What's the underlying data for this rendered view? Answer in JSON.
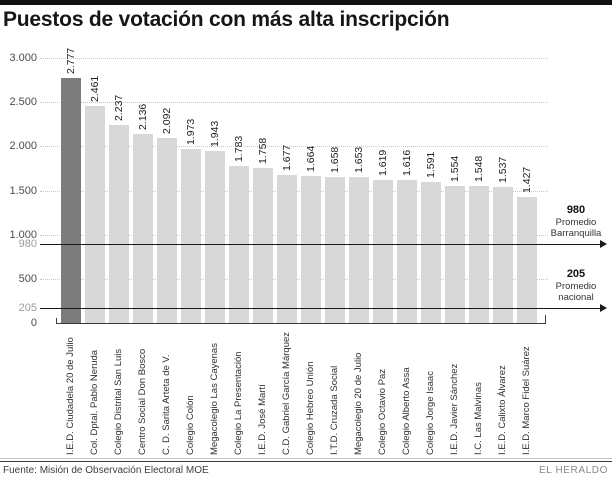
{
  "title": "Puestos de votación con más alta inscripción",
  "footer": {
    "source": "Fuente: Misión de Observación Electoral MOE",
    "credit": "EL HERALDO"
  },
  "colors": {
    "highlight_bar": "#7c7c7c",
    "bar": "#d8d8d8",
    "grid": "#c7c7c7",
    "reference_line": "#1a1a1a",
    "axis_label": "#4d4d4d",
    "reference_axis_label": "#9c9c9c"
  },
  "chart_data": {
    "type": "bar",
    "title": "Puestos de votación con más alta inscripción",
    "categories": [
      "I.E.D. Ciudadela 20 de Julio",
      "Col. Dptal. Pablo Neruda",
      "Colegio Distrital San Luis",
      "Centro Social Don Bosco",
      "C. D. Sarita Arteta de V.",
      "Colegio Colón",
      "Megacolegio Las Cayenas",
      "Colegio La Presentación",
      "I.E.D. José Martí",
      "C.D. Gabriel García Márquez",
      "Colegio Hebreo Unión",
      "I.T.D. Cruzada Social",
      "Megacolegio 20 de Julio",
      "Colegio Octavio Paz",
      "Colegio Alberto Assa",
      "Colegio Jorge Isaac",
      "I.E.D. Javier Sánchez",
      "I.C. Las Malvinas",
      "I.E.D. Calixto Álvarez",
      "I.E.D. Marco Fidel Suárez"
    ],
    "values": [
      2777,
      2461,
      2237,
      2136,
      2092,
      1973,
      1943,
      1783,
      1758,
      1677,
      1664,
      1658,
      1653,
      1619,
      1616,
      1591,
      1554,
      1548,
      1537,
      1427
    ],
    "value_labels": [
      "2.777",
      "2.461",
      "2.237",
      "2.136",
      "2.092",
      "1.973",
      "1.943",
      "1.783",
      "1.758",
      "1.677",
      "1.664",
      "1.658",
      "1.653",
      "1.619",
      "1.616",
      "1.591",
      "1.554",
      "1.548",
      "1.537",
      "1.427"
    ],
    "highlight_index": 0,
    "ylim": [
      0,
      3000
    ],
    "yticks": [
      0,
      500,
      1000,
      1500,
      2000,
      2500,
      3000
    ],
    "ytick_labels": [
      "0",
      "500",
      "1.000",
      "1.500",
      "2.000",
      "2.500",
      "3.000"
    ],
    "grid": "horizontal-dotted",
    "legend": "none",
    "reference_lines": [
      {
        "value": 980,
        "label": "980",
        "lines": [
          "Promedio",
          "Barranquilla"
        ],
        "description": "Promedio Barranquilla"
      },
      {
        "value": 205,
        "label": "205",
        "lines": [
          "Promedio",
          "nacional"
        ],
        "description": "Promedio nacional"
      }
    ]
  }
}
